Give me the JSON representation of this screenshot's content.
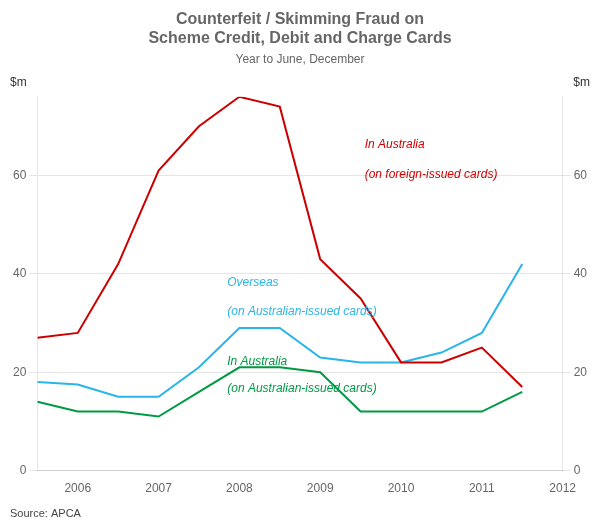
{
  "chart_data": {
    "type": "line",
    "title": [
      "Counterfeit / Skimming Fraud on",
      "Scheme Credit, Debit and Charge Cards"
    ],
    "subtitle": "Year to June, December",
    "ylabel": "$m",
    "y2label": "$m",
    "source": "Source: APCA",
    "x": [
      2005.5,
      2006.0,
      2006.5,
      2007.0,
      2007.5,
      2008.0,
      2008.5,
      2009.0,
      2009.5,
      2010.0,
      2010.5,
      2011.0,
      2011.5
    ],
    "xlim": [
      2005.5,
      2012.0
    ],
    "xticks": [
      2006,
      2007,
      2008,
      2009,
      2010,
      2011,
      2012
    ],
    "ylim": [
      0,
      76
    ],
    "yticks": [
      0,
      20,
      40,
      60
    ],
    "y2lim": [
      0,
      76
    ],
    "y2ticks": [
      0,
      20,
      40,
      60
    ],
    "grid": "y",
    "series": [
      {
        "name": "In Australia\n(on foreign-issued cards)",
        "color": "#cc0000",
        "values": [
          27,
          28,
          42,
          61,
          70,
          76,
          74,
          43,
          35,
          22,
          22,
          25,
          17
        ]
      },
      {
        "name": "Overseas\n(on Australian-issued cards)",
        "color": "#29b5e8",
        "values": [
          18,
          17.5,
          15,
          15,
          21,
          29,
          29,
          23,
          22,
          22,
          24,
          28,
          42
        ]
      },
      {
        "name": "In Australia\n(on Australian-issued cards)",
        "color": "#009944",
        "values": [
          14,
          12,
          12,
          11,
          16,
          21,
          21,
          20,
          12,
          12,
          12,
          12,
          16
        ]
      }
    ],
    "annotations": [
      {
        "text": "In Australia",
        "x": 2009.55,
        "y": 65,
        "color": "#cc0000"
      },
      {
        "text": "(on foreign-issued cards)",
        "x": 2009.55,
        "y": 59,
        "color": "#cc0000"
      },
      {
        "text": "Overseas",
        "x": 2007.85,
        "y": 37,
        "color": "#29b5e8"
      },
      {
        "text": "(on Australian-issued cards)",
        "x": 2007.85,
        "y": 31,
        "color": "#29b5e8"
      },
      {
        "text": "In Australia",
        "x": 2007.85,
        "y": 21,
        "color": "#009944"
      },
      {
        "text": "(on Australian-issued cards)",
        "x": 2007.85,
        "y": 15.5,
        "color": "#009944"
      }
    ]
  }
}
